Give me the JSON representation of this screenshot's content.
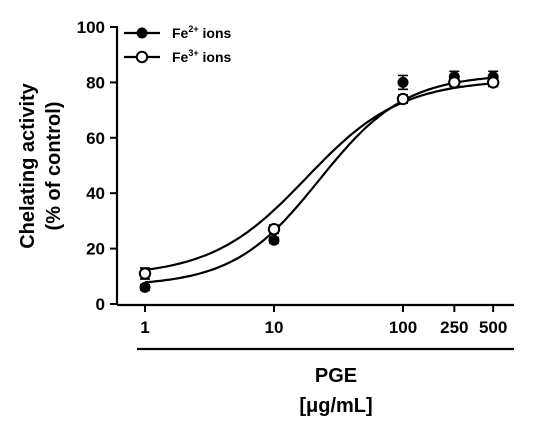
{
  "chart_data": {
    "type": "scatter",
    "title": "",
    "xlabel": "PGE",
    "xunit": "[μg/mL]",
    "ylabel": "Chelating activity",
    "ylabel_sub": "(% of control)",
    "xscale": "log",
    "ylim": [
      0,
      100
    ],
    "yticks": [
      0,
      20,
      40,
      60,
      80,
      100
    ],
    "xticks": [
      1,
      10,
      100,
      250,
      500
    ],
    "legend": "top-left",
    "series": [
      {
        "name": "Fe2+ ions",
        "legend_base": "Fe",
        "legend_sup": "2+",
        "legend_rest": " ions",
        "marker": "filled-circle",
        "x": [
          1,
          10,
          100,
          250,
          500
        ],
        "y": [
          6,
          23,
          80,
          82,
          82
        ],
        "err": [
          1.0,
          1.0,
          2.5,
          2.0,
          2.0
        ],
        "fit": {
          "bottom": 6.5,
          "top": 83,
          "logEC50": 1.35,
          "hill": 1.3
        }
      },
      {
        "name": "Fe3+ ions",
        "legend_base": "Fe",
        "legend_sup": "3+",
        "legend_rest": " ions",
        "marker": "open-circle",
        "x": [
          1,
          10,
          100,
          250,
          500
        ],
        "y": [
          11,
          27,
          74,
          80,
          80
        ],
        "err": [
          2.0,
          1.5,
          1.5,
          1.5,
          1.5
        ],
        "fit": {
          "bottom": 10,
          "top": 81,
          "logEC50": 1.25,
          "hill": 1.18
        }
      }
    ]
  }
}
